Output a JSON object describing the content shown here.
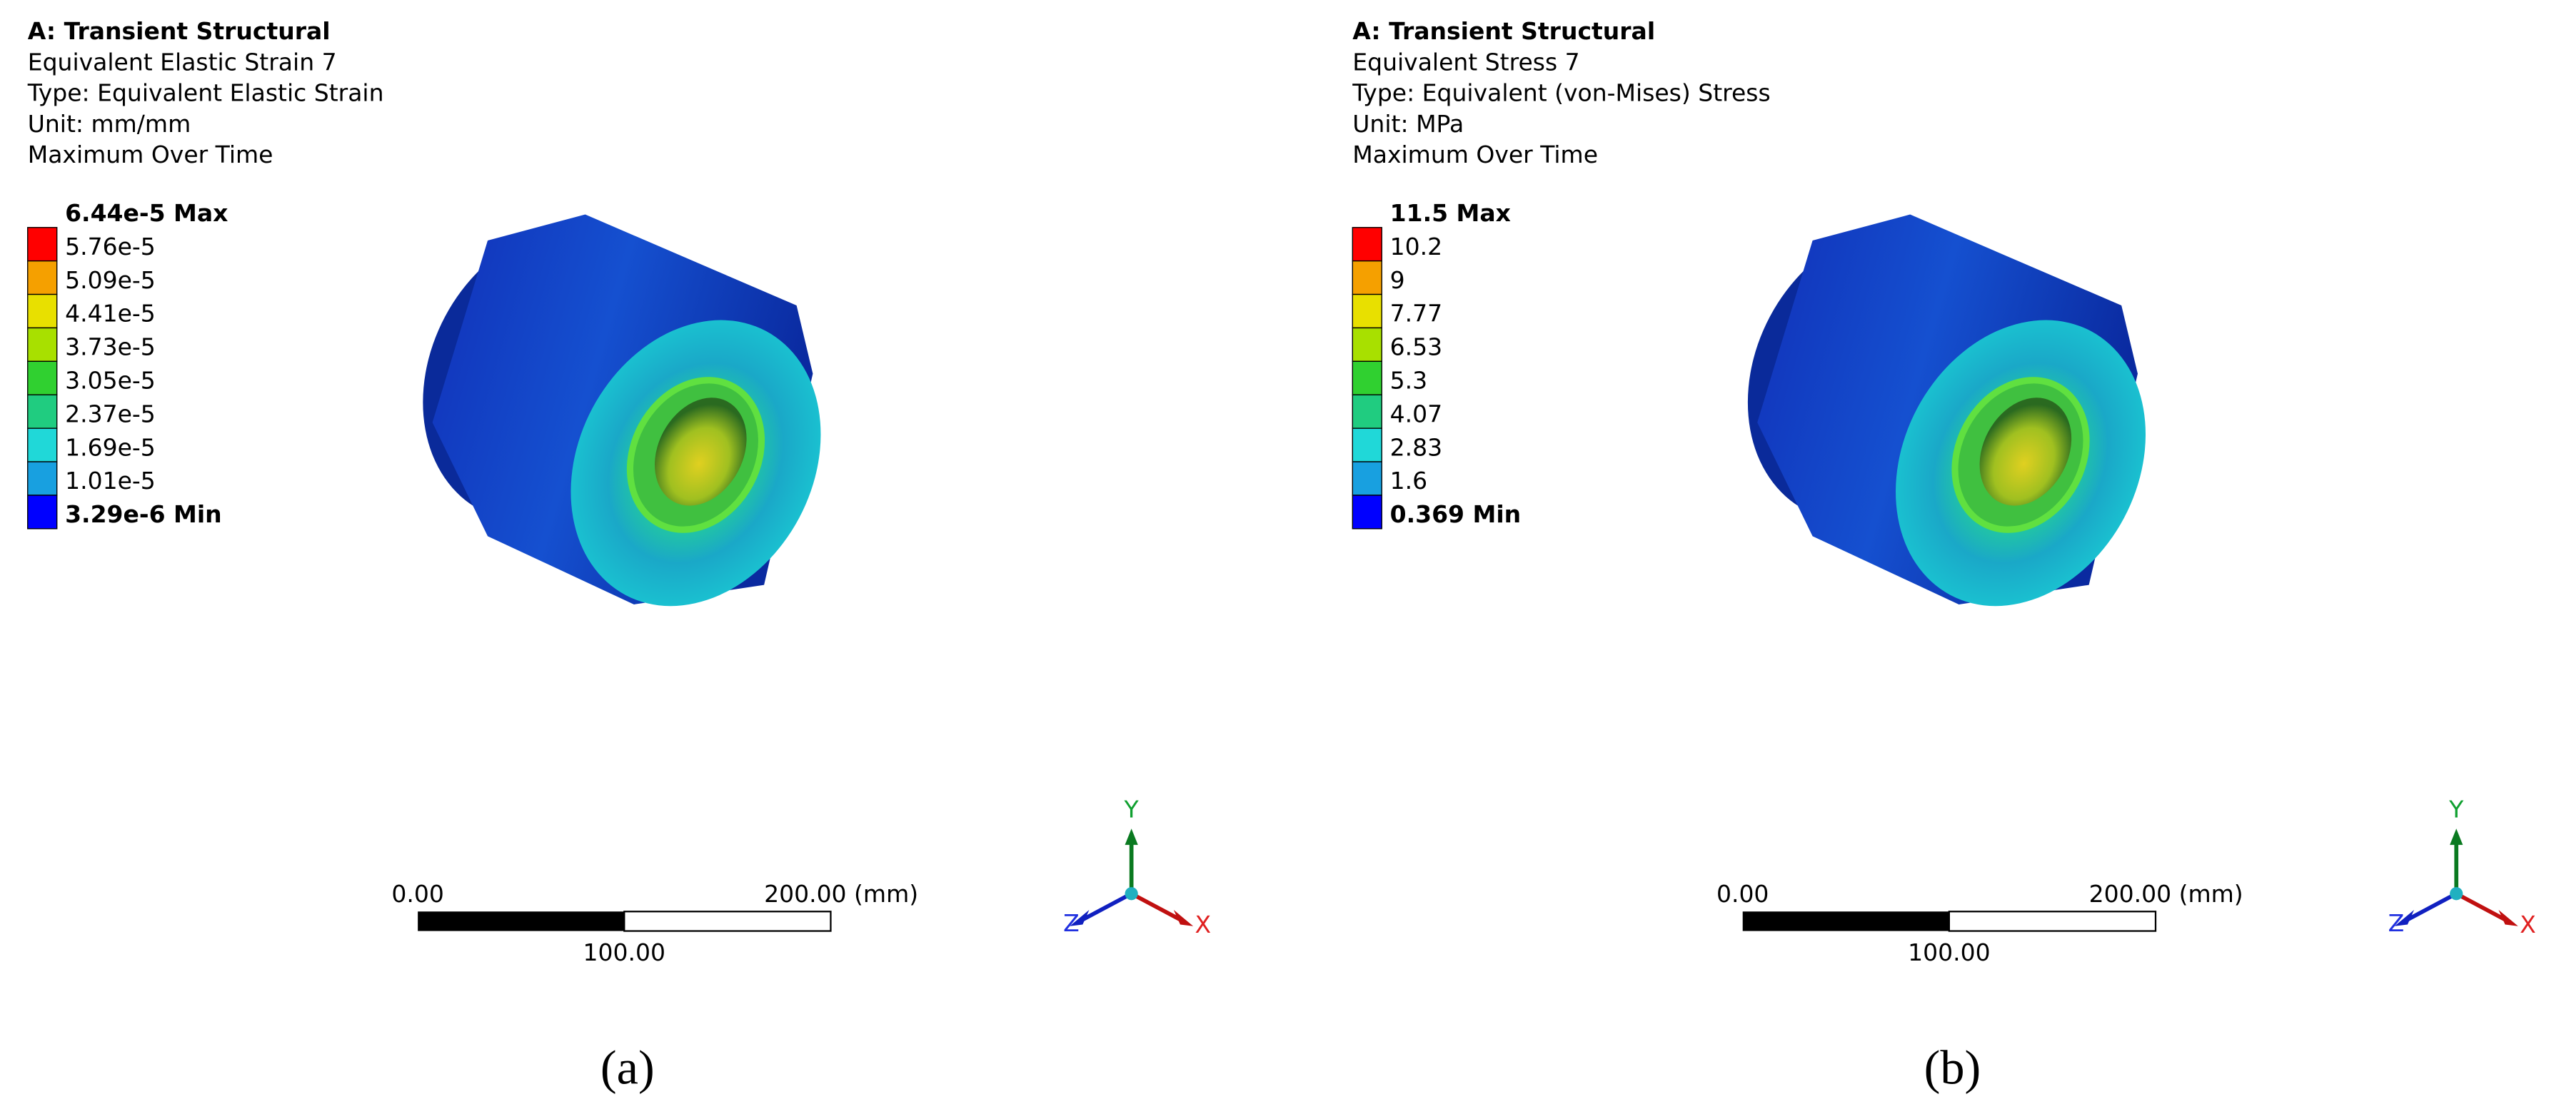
{
  "panels": [
    {
      "header": {
        "title": "A: Transient Structural",
        "lines": [
          "Equivalent Elastic Strain 7",
          "Type: Equivalent Elastic Strain",
          "Unit: mm/mm",
          "Maximum Over Time"
        ]
      },
      "legend": {
        "labels": [
          "6.44e-5 Max",
          "5.76e-5",
          "5.09e-5",
          "4.41e-5",
          "3.73e-5",
          "3.05e-5",
          "2.37e-5",
          "1.69e-5",
          "1.01e-5",
          "3.29e-6 Min"
        ]
      },
      "scale": {
        "start": "0.00",
        "end": "200.00 (mm)",
        "mid": "100.00"
      },
      "triad": {
        "y": "Y",
        "x": "X",
        "z": "Z"
      },
      "caption": "(a)"
    },
    {
      "header": {
        "title": "A: Transient Structural",
        "lines": [
          "Equivalent Stress 7",
          "Type: Equivalent (von-Mises) Stress",
          "Unit: MPa",
          "Maximum Over Time"
        ]
      },
      "legend": {
        "labels": [
          "11.5 Max",
          "10.2",
          "9",
          "7.77",
          "6.53",
          "5.3",
          "4.07",
          "2.83",
          "1.6",
          "0.369 Min"
        ]
      },
      "scale": {
        "start": "0.00",
        "end": "200.00 (mm)",
        "mid": "100.00"
      },
      "triad": {
        "y": "Y",
        "x": "X",
        "z": "Z"
      },
      "caption": "(b)"
    }
  ]
}
